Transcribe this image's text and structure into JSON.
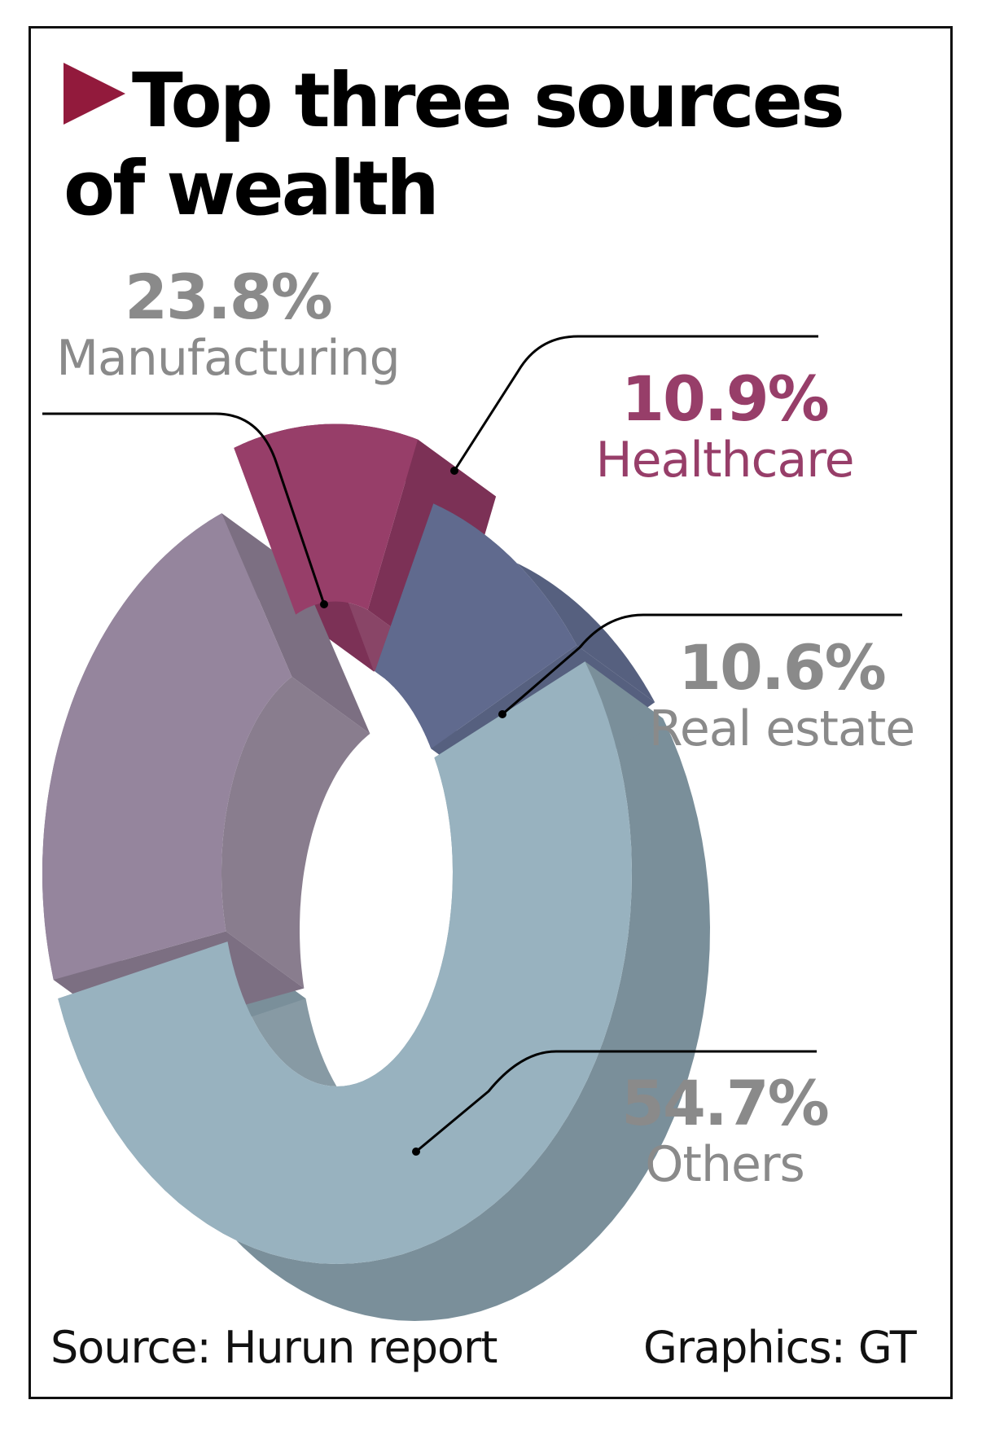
{
  "chart_data": {
    "type": "pie",
    "subtype": "3d-donut",
    "title": "Top three sources of wealth",
    "slices": [
      {
        "key": "healthcare",
        "label": "Healthcare",
        "value": 10.9,
        "display": "10.9%",
        "color": "#973e69",
        "side_color": "#7c3156",
        "label_color": "#973e69",
        "exploded": true
      },
      {
        "key": "realestate",
        "label": "Real estate",
        "value": 10.6,
        "display": "10.6%",
        "color": "#606a8e",
        "side_color": "#56607f",
        "label_color": "#8a8a8a",
        "exploded": false
      },
      {
        "key": "others",
        "label": "Others",
        "value": 54.7,
        "display": "54.7%",
        "color": "#98b2bf",
        "side_color": "#7a8f9a",
        "label_color": "#8a8a8a",
        "exploded": false
      },
      {
        "key": "manufacturing",
        "label": "Manufacturing",
        "value": 23.8,
        "display": "23.8%",
        "color": "#95859d",
        "side_color": "#7c6f82",
        "label_color": "#8a8a8a",
        "exploded": false
      }
    ],
    "units": "percent",
    "legend": "none (callout labels)"
  },
  "header": {
    "title_line1": "Top three sources",
    "title_line2": "of wealth",
    "accent_color": "#921a3c"
  },
  "footer": {
    "source": "Source: Hurun report",
    "credit": "Graphics: GT"
  }
}
